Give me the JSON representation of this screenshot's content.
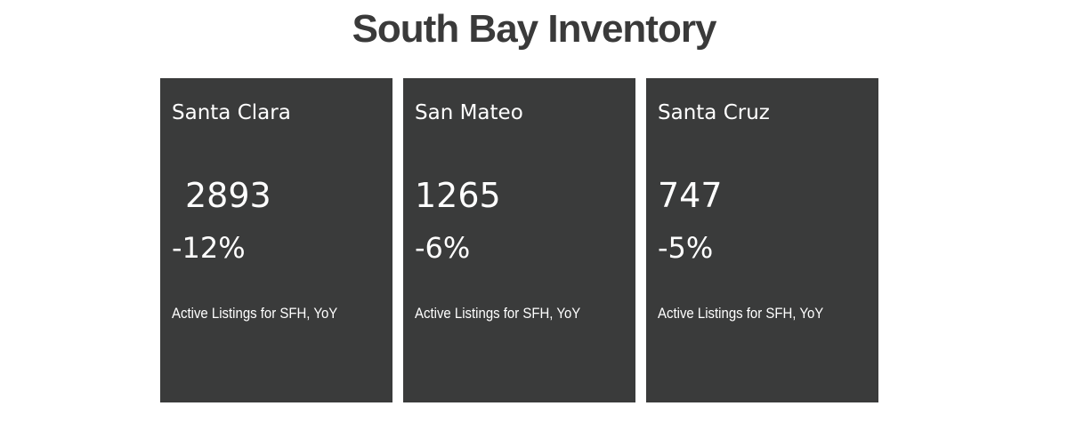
{
  "header": {
    "title": "South Bay Inventory"
  },
  "cards": [
    {
      "name": "Santa Clara",
      "value": 2893,
      "change": "-12%",
      "label": "Active Listings for SFH, YoY"
    },
    {
      "name": "San Mateo",
      "value": 1265,
      "change": "-6%",
      "label": "Active Listings for SFH, YoY"
    },
    {
      "name": "Santa Cruz",
      "value": 747,
      "change": "-5%",
      "label": "Active Listings for SFH, YoY"
    }
  ]
}
